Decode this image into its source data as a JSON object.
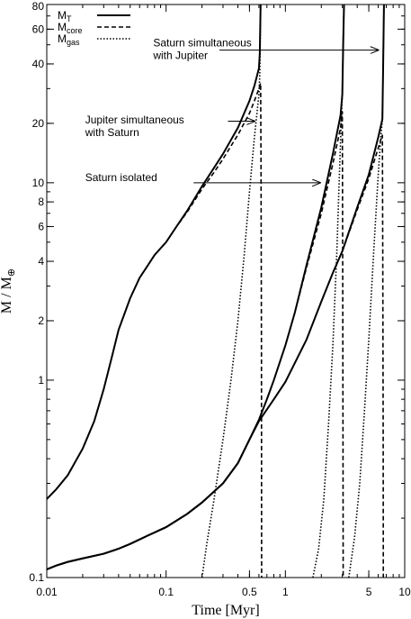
{
  "chart_data": {
    "type": "line",
    "xscale": "log",
    "yscale": "log",
    "xlim": [
      0.01,
      10
    ],
    "ylim": [
      0.1,
      80
    ],
    "xlabel": "Time [Myr]",
    "ylabel_main": "M / M",
    "ylabel_sub": "⊕",
    "x_ticks": [
      {
        "value": 0.01,
        "label": "0.01"
      },
      {
        "value": 0.1,
        "label": "0.1"
      },
      {
        "value": 0.5,
        "label": "0.5"
      },
      {
        "value": 1,
        "label": "1"
      },
      {
        "value": 5,
        "label": "5"
      },
      {
        "value": 10,
        "label": "10"
      }
    ],
    "y_ticks": [
      {
        "value": 0.1,
        "label": "0.1"
      },
      {
        "value": 1,
        "label": "1"
      },
      {
        "value": 2,
        "label": "2"
      },
      {
        "value": 4,
        "label": "4"
      },
      {
        "value": 6,
        "label": "6"
      },
      {
        "value": 8,
        "label": "8"
      },
      {
        "value": 10,
        "label": "10"
      },
      {
        "value": 20,
        "label": "20"
      },
      {
        "value": 40,
        "label": "40"
      },
      {
        "value": 60,
        "label": "60"
      },
      {
        "value": 80,
        "label": "80"
      }
    ],
    "legend": {
      "placement": "top-left",
      "entries": [
        {
          "base": "M",
          "sub": "T",
          "style": "solid"
        },
        {
          "base": "M",
          "sub": "core",
          "style": "dashed"
        },
        {
          "base": "M",
          "sub": "gas",
          "style": "dotted"
        }
      ]
    },
    "annotations": [
      {
        "lines": [
          "Saturn simultaneous",
          "with Jupiter"
        ],
        "text_x": 0.078,
        "text_y": 49,
        "arrow_from": [
          0.28,
          47
        ],
        "arrow_to": [
          6.0,
          47
        ]
      },
      {
        "lines": [
          "Jupiter simultaneous",
          "with Saturn"
        ],
        "text_x": 0.021,
        "text_y": 20,
        "arrow_from": [
          0.33,
          20.5
        ],
        "arrow_to": [
          0.55,
          20.5
        ]
      },
      {
        "lines": [
          "Saturn isolated"
        ],
        "text_x": 0.021,
        "text_y": 10.2,
        "arrow_from": [
          0.17,
          10
        ],
        "arrow_to": [
          1.95,
          10
        ]
      }
    ],
    "series": [
      {
        "style": "solid",
        "points": [
          [
            0.01,
            0.25
          ],
          [
            0.012,
            0.28
          ],
          [
            0.015,
            0.33
          ],
          [
            0.02,
            0.45
          ],
          [
            0.025,
            0.62
          ],
          [
            0.03,
            0.9
          ],
          [
            0.035,
            1.3
          ],
          [
            0.04,
            1.8
          ],
          [
            0.05,
            2.6
          ],
          [
            0.06,
            3.3
          ],
          [
            0.07,
            3.8
          ],
          [
            0.08,
            4.3
          ],
          [
            0.1,
            5.0
          ],
          [
            0.12,
            5.9
          ],
          [
            0.15,
            7.2
          ],
          [
            0.2,
            9.6
          ],
          [
            0.25,
            11.8
          ],
          [
            0.3,
            14.0
          ],
          [
            0.4,
            19.0
          ],
          [
            0.5,
            26.0
          ],
          [
            0.55,
            31.0
          ],
          [
            0.6,
            38.0
          ],
          [
            0.61,
            45.0
          ],
          [
            0.615,
            60.0
          ],
          [
            0.62,
            80.0
          ]
        ]
      },
      {
        "style": "dashed",
        "points": [
          [
            0.01,
            0.25
          ],
          [
            0.012,
            0.28
          ],
          [
            0.015,
            0.33
          ],
          [
            0.02,
            0.45
          ],
          [
            0.025,
            0.62
          ],
          [
            0.03,
            0.9
          ],
          [
            0.035,
            1.3
          ],
          [
            0.04,
            1.8
          ],
          [
            0.05,
            2.6
          ],
          [
            0.06,
            3.3
          ],
          [
            0.07,
            3.8
          ],
          [
            0.08,
            4.3
          ],
          [
            0.1,
            5.0
          ],
          [
            0.12,
            5.9
          ],
          [
            0.15,
            7.1
          ],
          [
            0.2,
            9.3
          ],
          [
            0.25,
            11.2
          ],
          [
            0.3,
            13.2
          ],
          [
            0.4,
            17.5
          ],
          [
            0.5,
            22.5
          ],
          [
            0.55,
            26.0
          ],
          [
            0.6,
            30.0
          ],
          [
            0.62,
            32.0
          ],
          [
            0.625,
            12.0
          ],
          [
            0.63,
            1.5
          ],
          [
            0.632,
            0.1
          ]
        ]
      },
      {
        "style": "dotted",
        "points": [
          [
            0.2,
            0.1
          ],
          [
            0.22,
            0.15
          ],
          [
            0.25,
            0.24
          ],
          [
            0.3,
            0.5
          ],
          [
            0.35,
            1.0
          ],
          [
            0.4,
            2.0
          ],
          [
            0.45,
            4.2
          ],
          [
            0.5,
            9.0
          ],
          [
            0.55,
            17.0
          ],
          [
            0.6,
            28.0
          ],
          [
            0.61,
            35.0
          ],
          [
            0.615,
            50.0
          ],
          [
            0.62,
            80.0
          ]
        ]
      },
      {
        "style": "solid",
        "points": [
          [
            0.01,
            0.11
          ],
          [
            0.012,
            0.115
          ],
          [
            0.015,
            0.12
          ],
          [
            0.02,
            0.125
          ],
          [
            0.03,
            0.132
          ],
          [
            0.04,
            0.14
          ],
          [
            0.05,
            0.148
          ],
          [
            0.07,
            0.163
          ],
          [
            0.1,
            0.18
          ],
          [
            0.15,
            0.21
          ],
          [
            0.2,
            0.24
          ],
          [
            0.3,
            0.3
          ],
          [
            0.4,
            0.38
          ],
          [
            0.5,
            0.5
          ],
          [
            0.6,
            0.63
          ],
          [
            0.7,
            0.8
          ],
          [
            0.8,
            1.0
          ],
          [
            1.0,
            1.5
          ],
          [
            1.2,
            2.2
          ],
          [
            1.5,
            3.8
          ],
          [
            2.0,
            7.5
          ],
          [
            2.5,
            14.0
          ],
          [
            2.9,
            22.0
          ],
          [
            3.0,
            28.0
          ],
          [
            3.05,
            50.0
          ],
          [
            3.1,
            80.0
          ]
        ]
      },
      {
        "style": "dashed",
        "points": [
          [
            0.01,
            0.11
          ],
          [
            0.012,
            0.115
          ],
          [
            0.015,
            0.12
          ],
          [
            0.02,
            0.125
          ],
          [
            0.03,
            0.132
          ],
          [
            0.04,
            0.14
          ],
          [
            0.05,
            0.148
          ],
          [
            0.07,
            0.163
          ],
          [
            0.1,
            0.18
          ],
          [
            0.15,
            0.21
          ],
          [
            0.2,
            0.24
          ],
          [
            0.3,
            0.3
          ],
          [
            0.4,
            0.38
          ],
          [
            0.5,
            0.5
          ],
          [
            0.6,
            0.63
          ],
          [
            0.7,
            0.8
          ],
          [
            0.8,
            1.0
          ],
          [
            1.0,
            1.5
          ],
          [
            1.2,
            2.2
          ],
          [
            1.5,
            3.7
          ],
          [
            2.0,
            7.0
          ],
          [
            2.5,
            12.5
          ],
          [
            2.9,
            19.0
          ],
          [
            3.0,
            23.0
          ],
          [
            3.02,
            5.0
          ],
          [
            3.04,
            0.5
          ],
          [
            3.05,
            0.1
          ]
        ]
      },
      {
        "style": "dotted",
        "points": [
          [
            1.7,
            0.1
          ],
          [
            1.9,
            0.14
          ],
          [
            2.1,
            0.25
          ],
          [
            2.3,
            0.6
          ],
          [
            2.5,
            1.5
          ],
          [
            2.7,
            4.5
          ],
          [
            2.85,
            12.0
          ],
          [
            2.95,
            22.0
          ],
          [
            3.0,
            28.0
          ],
          [
            3.05,
            50.0
          ],
          [
            3.1,
            80.0
          ]
        ]
      },
      {
        "style": "solid",
        "points": [
          [
            0.01,
            0.11
          ],
          [
            0.012,
            0.115
          ],
          [
            0.015,
            0.12
          ],
          [
            0.02,
            0.125
          ],
          [
            0.03,
            0.132
          ],
          [
            0.04,
            0.14
          ],
          [
            0.05,
            0.148
          ],
          [
            0.07,
            0.163
          ],
          [
            0.1,
            0.18
          ],
          [
            0.15,
            0.21
          ],
          [
            0.2,
            0.24
          ],
          [
            0.3,
            0.3
          ],
          [
            0.4,
            0.38
          ],
          [
            0.5,
            0.5
          ],
          [
            0.6,
            0.62
          ],
          [
            0.8,
            0.8
          ],
          [
            1.0,
            0.98
          ],
          [
            1.5,
            1.6
          ],
          [
            2.0,
            2.5
          ],
          [
            2.5,
            3.5
          ],
          [
            3.0,
            4.5
          ],
          [
            4.0,
            7.5
          ],
          [
            5.0,
            11.0
          ],
          [
            6.0,
            17.0
          ],
          [
            6.5,
            21.0
          ],
          [
            6.6,
            40.0
          ],
          [
            6.7,
            80.0
          ]
        ]
      },
      {
        "style": "dashed",
        "points": [
          [
            0.01,
            0.11
          ],
          [
            0.012,
            0.115
          ],
          [
            0.015,
            0.12
          ],
          [
            0.02,
            0.125
          ],
          [
            0.03,
            0.132
          ],
          [
            0.04,
            0.14
          ],
          [
            0.05,
            0.148
          ],
          [
            0.07,
            0.163
          ],
          [
            0.1,
            0.18
          ],
          [
            0.15,
            0.21
          ],
          [
            0.2,
            0.24
          ],
          [
            0.3,
            0.3
          ],
          [
            0.4,
            0.38
          ],
          [
            0.5,
            0.5
          ],
          [
            0.6,
            0.62
          ],
          [
            0.8,
            0.8
          ],
          [
            1.0,
            0.98
          ],
          [
            1.5,
            1.6
          ],
          [
            2.0,
            2.5
          ],
          [
            2.5,
            3.5
          ],
          [
            3.0,
            4.5
          ],
          [
            4.0,
            7.3
          ],
          [
            5.0,
            10.5
          ],
          [
            6.0,
            15.0
          ],
          [
            6.5,
            17.5
          ],
          [
            6.55,
            4.0
          ],
          [
            6.6,
            0.6
          ],
          [
            6.62,
            0.1
          ]
        ]
      },
      {
        "style": "dotted",
        "points": [
          [
            3.4,
            0.1
          ],
          [
            3.8,
            0.16
          ],
          [
            4.2,
            0.3
          ],
          [
            4.6,
            0.7
          ],
          [
            5.0,
            1.6
          ],
          [
            5.5,
            4.5
          ],
          [
            6.0,
            11.0
          ],
          [
            6.3,
            17.0
          ],
          [
            6.5,
            21.0
          ],
          [
            6.6,
            40.0
          ],
          [
            6.7,
            80.0
          ]
        ]
      }
    ]
  }
}
